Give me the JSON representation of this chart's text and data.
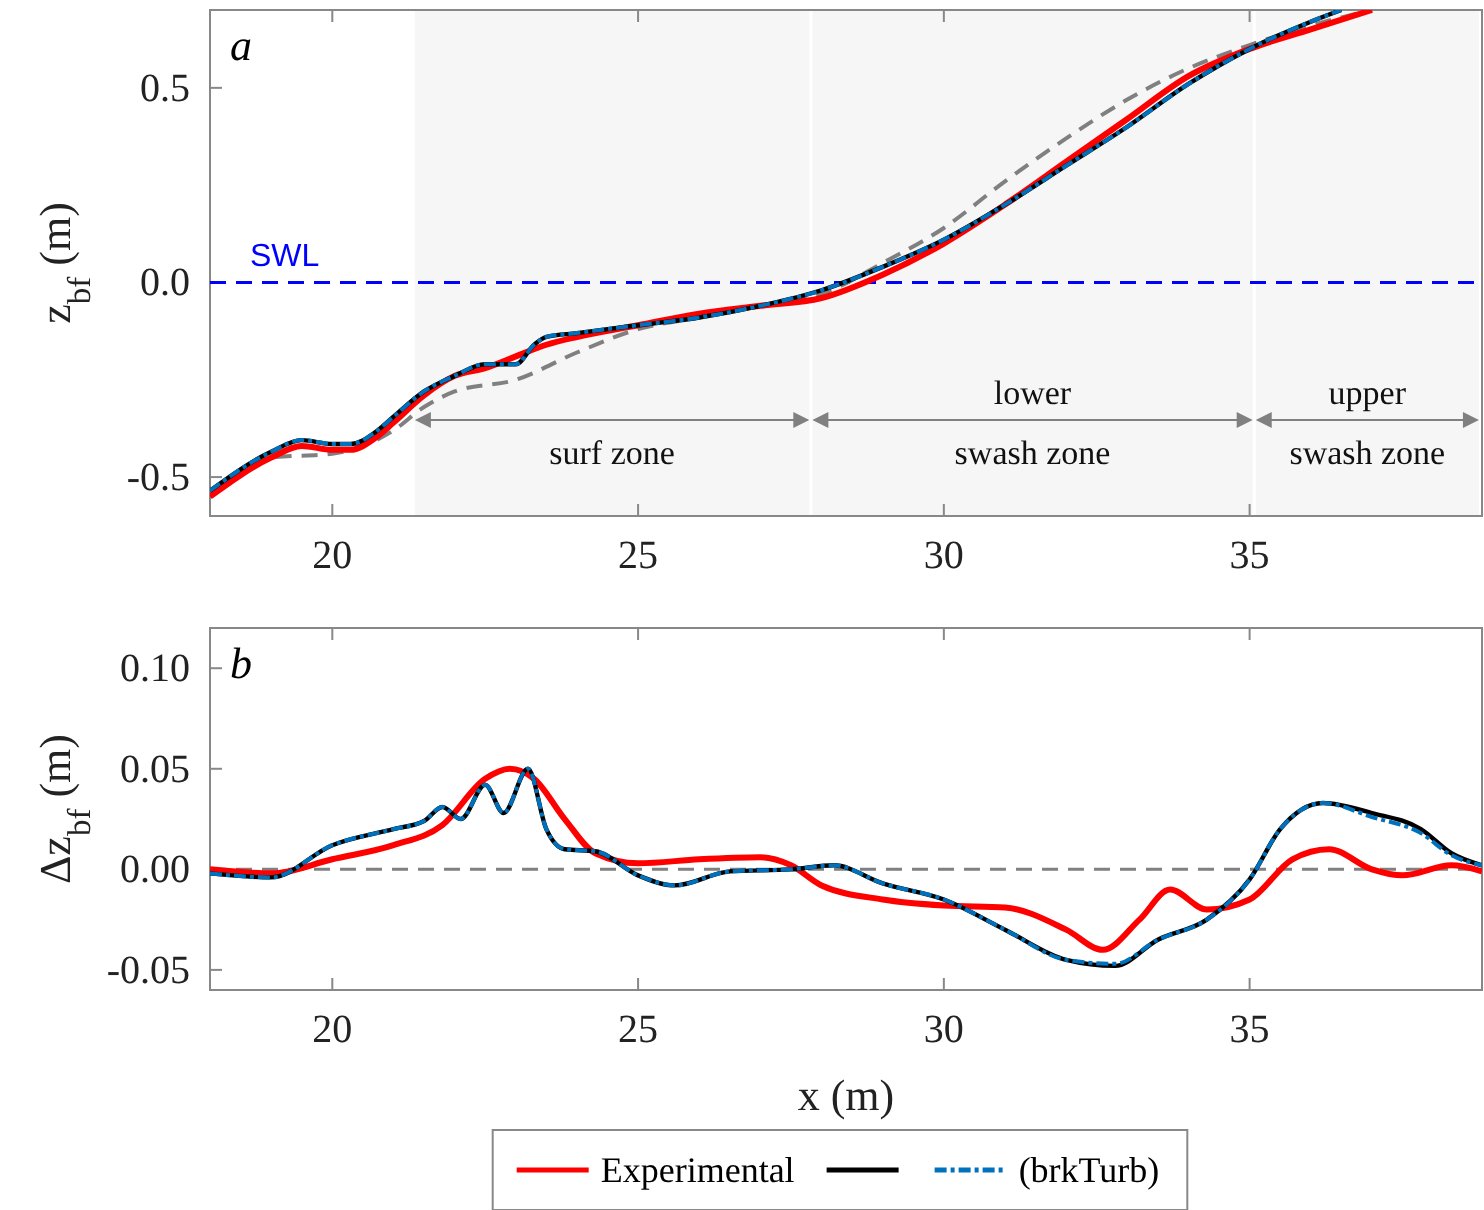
{
  "chart_data": [
    {
      "type": "line",
      "title": "a",
      "ylabel": "z$_{bf}$ (m)",
      "xlim": [
        18,
        38.8
      ],
      "ylim": [
        -0.6,
        0.7
      ],
      "xticks": [
        20,
        25,
        30,
        35
      ],
      "yticks": [
        {
          "value": -0.5,
          "label": "-0.5"
        },
        {
          "value": 0,
          "label": "0.0"
        },
        {
          "value": 0.5,
          "label": "0.5"
        }
      ],
      "grid": false,
      "legend": false,
      "ref_lines": [
        {
          "axis": "y",
          "value": 0,
          "label": "SWL",
          "color": "#0000ff",
          "line_style": "dashed"
        }
      ],
      "bands": [
        {
          "axis": "x",
          "from": 21.35,
          "to": 27.8,
          "label": "surf zone",
          "color": "#808080"
        },
        {
          "axis": "x",
          "from": 27.85,
          "to": 35.05,
          "label": "lower\nswash zone",
          "color": "#808080"
        },
        {
          "axis": "x",
          "from": 35.1,
          "to": 38.75,
          "label": "upper\nswash zone",
          "color": "#808080"
        }
      ],
      "series": [
        {
          "color": "#808080",
          "line_style": "dashed",
          "x": [
            18,
            19,
            20,
            21,
            21.5,
            22,
            23,
            24,
            25,
            26,
            27,
            28,
            29,
            30,
            31,
            32,
            33,
            34,
            35,
            36,
            37
          ],
          "values": [
            -0.55,
            -0.45,
            -0.44,
            -0.38,
            -0.32,
            -0.28,
            -0.25,
            -0.18,
            -0.12,
            -0.09,
            -0.06,
            -0.03,
            0.05,
            0.14,
            0.26,
            0.37,
            0.47,
            0.55,
            0.61,
            0.66,
            0.7
          ]
        },
        {
          "color": "#ff0000",
          "line_style": "solid",
          "x": [
            18,
            19,
            19.5,
            20,
            20.3,
            20.7,
            21,
            21.5,
            22,
            22.5,
            23,
            23.5,
            24,
            25,
            26,
            27,
            28,
            29,
            30,
            31,
            32,
            33,
            34,
            35,
            36,
            37
          ],
          "values": [
            -0.55,
            -0.45,
            -0.42,
            -0.43,
            -0.43,
            -0.4,
            -0.36,
            -0.29,
            -0.24,
            -0.22,
            -0.19,
            -0.16,
            -0.14,
            -0.11,
            -0.08,
            -0.06,
            -0.04,
            0.02,
            0.1,
            0.2,
            0.31,
            0.42,
            0.53,
            0.6,
            0.65,
            0.7
          ]
        },
        {
          "color": "#000000",
          "line_style": "solid",
          "x": [
            18,
            19,
            19.5,
            20,
            20.3,
            20.7,
            21,
            21.5,
            22,
            22.5,
            23,
            23.3,
            23.5,
            24,
            25,
            26,
            27,
            28,
            29,
            30,
            31,
            32,
            33,
            34,
            35,
            36,
            36.5
          ],
          "values": [
            -0.535,
            -0.435,
            -0.405,
            -0.415,
            -0.415,
            -0.385,
            -0.345,
            -0.28,
            -0.24,
            -0.21,
            -0.21,
            -0.16,
            -0.14,
            -0.13,
            -0.11,
            -0.09,
            -0.06,
            -0.02,
            0.04,
            0.11,
            0.2,
            0.3,
            0.4,
            0.51,
            0.6,
            0.67,
            0.7
          ]
        },
        {
          "color": "#0072bd",
          "line_style": "dashed",
          "x": [
            18,
            19,
            19.5,
            20,
            20.3,
            20.7,
            21,
            21.5,
            22,
            22.5,
            23,
            23.3,
            23.5,
            24,
            25,
            26,
            27,
            28,
            29,
            30,
            31,
            32,
            33,
            34,
            35,
            36,
            36.5
          ],
          "values": [
            -0.535,
            -0.435,
            -0.405,
            -0.415,
            -0.415,
            -0.385,
            -0.345,
            -0.28,
            -0.24,
            -0.21,
            -0.21,
            -0.16,
            -0.14,
            -0.13,
            -0.11,
            -0.09,
            -0.06,
            -0.02,
            0.04,
            0.11,
            0.2,
            0.3,
            0.4,
            0.51,
            0.6,
            0.67,
            0.7
          ]
        }
      ]
    },
    {
      "type": "line",
      "title": "b",
      "ylabel": "Δz$_{bf}$ (m)",
      "xlabel": "x (m)",
      "xlim": [
        18,
        38.8
      ],
      "ylim": [
        -0.06,
        0.12
      ],
      "xticks": [
        20,
        25,
        30,
        35
      ],
      "yticks": [
        {
          "value": -0.05,
          "label": "-0.05"
        },
        {
          "value": 0,
          "label": "0.00"
        },
        {
          "value": 0.05,
          "label": "0.05"
        },
        {
          "value": 0.1,
          "label": "0.10"
        }
      ],
      "grid": false,
      "legend": "bottom",
      "ref_lines": [
        {
          "axis": "y",
          "value": 0,
          "color": "#808080",
          "line_style": "dashed"
        }
      ],
      "series": [
        {
          "name": "Experimental",
          "color": "#ff0000",
          "line_style": "solid",
          "x": [
            18,
            19,
            20,
            21,
            21.8,
            22.5,
            22.9,
            23.3,
            23.8,
            24.3,
            25,
            26,
            27,
            27.5,
            28,
            29,
            30,
            31,
            32,
            32.6,
            33.2,
            33.7,
            34.3,
            35,
            35.7,
            36.3,
            37,
            37.5,
            38.3,
            38.8
          ],
          "values": [
            0,
            -0.002,
            0.005,
            0.012,
            0.022,
            0.045,
            0.05,
            0.045,
            0.025,
            0.008,
            0.003,
            0.005,
            0.006,
            0.002,
            -0.008,
            -0.015,
            -0.018,
            -0.019,
            -0.03,
            -0.04,
            -0.025,
            -0.01,
            -0.02,
            -0.015,
            0.005,
            0.01,
            0,
            -0.003,
            0.002,
            -0.001
          ]
        },
        {
          "color": "#000000",
          "line_style": "solid",
          "x": [
            18,
            19,
            20,
            21,
            21.5,
            21.8,
            22.1,
            22.5,
            22.8,
            23.2,
            23.5,
            23.8,
            24.3,
            25,
            25.6,
            26.5,
            27.5,
            28.2,
            29,
            30,
            31,
            32,
            32.8,
            33.5,
            34.3,
            35,
            35.5,
            36.2,
            37,
            37.8,
            38.3,
            38.8
          ],
          "values": [
            -0.002,
            -0.004,
            0.012,
            0.02,
            0.024,
            0.031,
            0.025,
            0.042,
            0.028,
            0.05,
            0.02,
            0.01,
            0.009,
            -0.003,
            -0.008,
            -0.001,
            0,
            0.002,
            -0.007,
            -0.015,
            -0.03,
            -0.045,
            -0.048,
            -0.035,
            -0.025,
            -0.005,
            0.02,
            0.033,
            0.028,
            0.02,
            0.008,
            0.002
          ]
        },
        {
          "name": "(brkTurb)",
          "color": "#0072bd",
          "line_style": "dashed",
          "x": [
            18,
            19,
            20,
            21,
            21.5,
            21.8,
            22.1,
            22.5,
            22.8,
            23.2,
            23.5,
            23.8,
            24.3,
            25,
            25.6,
            26.5,
            27.5,
            28.2,
            29,
            30,
            31,
            32,
            32.8,
            33.5,
            34.3,
            35,
            35.5,
            36.2,
            37,
            37.8,
            38.3,
            38.8
          ],
          "values": [
            -0.002,
            -0.004,
            0.012,
            0.02,
            0.024,
            0.031,
            0.025,
            0.042,
            0.028,
            0.05,
            0.02,
            0.01,
            0.009,
            -0.003,
            -0.008,
            -0.001,
            0,
            0.002,
            -0.007,
            -0.015,
            -0.03,
            -0.045,
            -0.047,
            -0.035,
            -0.025,
            -0.005,
            0.02,
            0.033,
            0.026,
            0.018,
            0.007,
            0.002
          ]
        }
      ]
    }
  ]
}
